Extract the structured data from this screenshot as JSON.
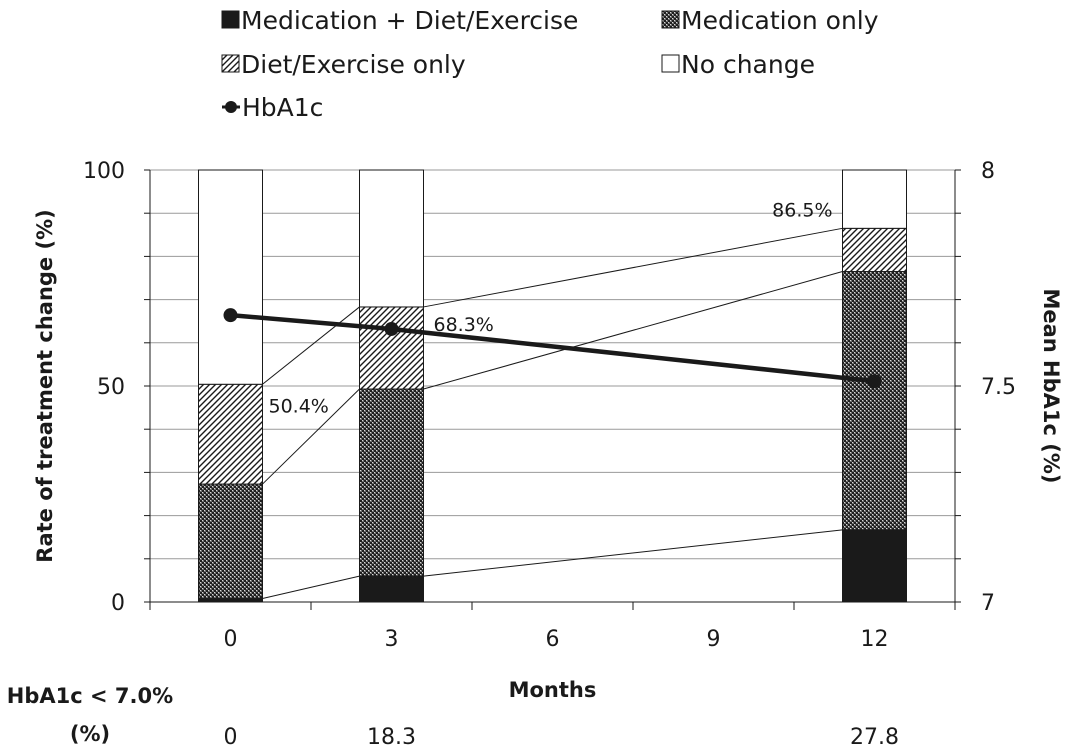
{
  "chart_data": {
    "type": "bar",
    "stacked": true,
    "categories": [
      0,
      3,
      12
    ],
    "x_ticks": [
      "0",
      "3",
      "6",
      "9",
      "12"
    ],
    "series": [
      {
        "name": "Medication + Diet/Exercise",
        "pattern": "solid-black",
        "values": [
          0.8,
          6.0,
          16.7
        ]
      },
      {
        "name": "Medication only",
        "pattern": "dense-crosshatch",
        "values": [
          26.5,
          43.3,
          59.8
        ]
      },
      {
        "name": "Diet/Exercise only",
        "pattern": "diagonal-hatch",
        "values": [
          23.1,
          19.0,
          10.0
        ]
      },
      {
        "name": "No change",
        "pattern": "white",
        "values": [
          49.6,
          31.7,
          13.5
        ]
      }
    ],
    "line_series": {
      "name": "HbA1c",
      "axis": "right",
      "x": [
        0,
        3,
        12
      ],
      "values": [
        7.664,
        7.632,
        7.511
      ]
    },
    "annotations": [
      {
        "text": "50.4%",
        "x": 0
      },
      {
        "text": "68.3%",
        "x": 3
      },
      {
        "text": "86.5%",
        "x": 12
      }
    ],
    "xlabel": "Months",
    "ylabel": "Rate of treatment change (%)",
    "ylabel_right": "Mean HbA1c (%)",
    "ylim": [
      0,
      100
    ],
    "yticks": [
      "0",
      "50",
      "100"
    ],
    "ylim_right": [
      7,
      8
    ],
    "yticks_right": [
      "7",
      "7.5",
      "8"
    ],
    "xlim": [
      -1.5,
      13.5
    ],
    "grid": "horizontal",
    "legend_position": "top"
  },
  "bottom_row": {
    "title_line1": "HbA1c < 7.0%",
    "title_line2": "(%)",
    "x": [
      0,
      3,
      12
    ],
    "values": [
      "0",
      "18.3",
      "27.8"
    ]
  }
}
